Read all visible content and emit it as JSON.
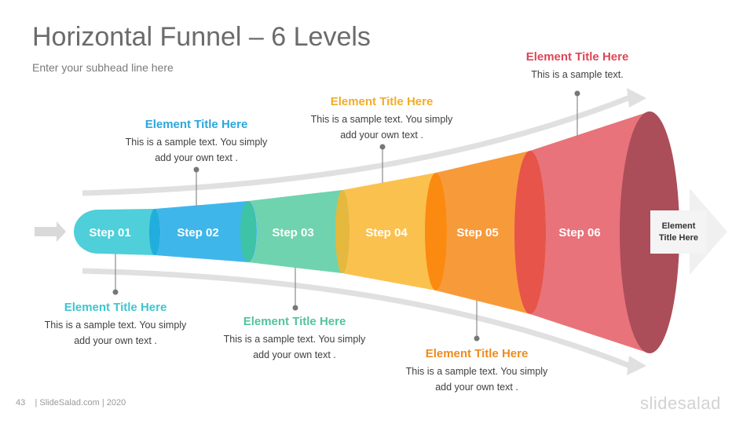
{
  "header": {
    "title": "Horizontal Funnel – 6 Levels",
    "subtitle": "Enter your subhead line here"
  },
  "colors": {
    "step1": "#4ecfd9",
    "step2": "#3fb6ea",
    "step3": "#6fd3b0",
    "step4": "#fbc14e",
    "step5": "#f79a3a",
    "step6": "#e8737a",
    "rim": "#ab4e5a",
    "arrow": "#e0e0e0"
  },
  "steps": [
    {
      "label": "Step  01"
    },
    {
      "label": "Step  02"
    },
    {
      "label": "Step  03"
    },
    {
      "label": "Step  04"
    },
    {
      "label": "Step  05"
    },
    {
      "label": "Step  06"
    }
  ],
  "callouts": [
    {
      "title": "Element Title Here",
      "text": "This is a sample text. You simply add your own text .",
      "color": "#3ec6d2"
    },
    {
      "title": "Element Title Here",
      "text": "This is a sample text. You simply add your own text .",
      "color": "#2aa7dd"
    },
    {
      "title": "Element Title Here",
      "text": "This is a sample text. You simply add your own text .",
      "color": "#52c49a"
    },
    {
      "title": "Element Title Here",
      "text": "This is a sample text. You simply add your own text .",
      "color": "#f2ac2a"
    },
    {
      "title": "Element Title Here",
      "text": "This is a sample text. You simply add your own text .",
      "color": "#f08a1c"
    },
    {
      "title": "Element Title Here",
      "text": "This is a sample text.",
      "color": "#dc4756"
    }
  ],
  "end_label": "Element Title Here",
  "footer": {
    "page": "43",
    "source": "| SlideSalad.com | 2020",
    "brand": "slidesalad"
  }
}
